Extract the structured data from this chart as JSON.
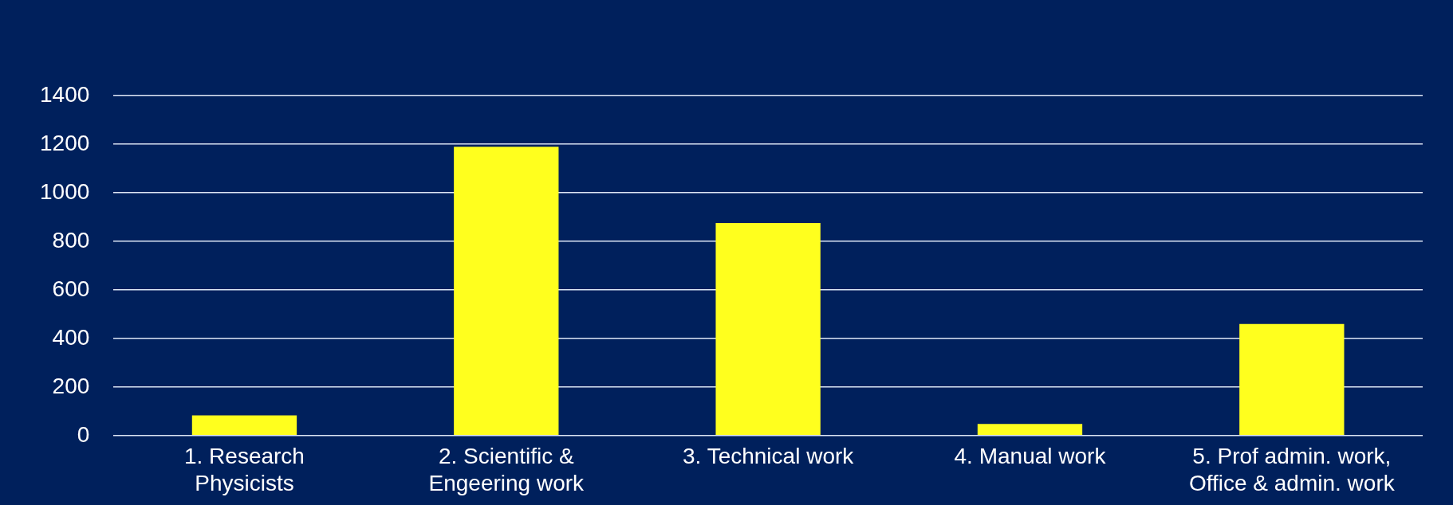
{
  "chart_data": {
    "type": "bar",
    "categories": [
      "1. Research Physicists",
      "2. Scientific & Engeering work",
      "3. Technical work",
      "4. Manual work",
      "5. Prof admin. work, Office & admin. work"
    ],
    "values": [
      83,
      1189,
      875,
      48,
      459
    ],
    "color": "#ffff1e",
    "ylim": [
      0,
      1400
    ],
    "yticks": [
      0,
      200,
      400,
      600,
      800,
      1000,
      1200,
      1400
    ],
    "grid": "y",
    "legend": false
  }
}
